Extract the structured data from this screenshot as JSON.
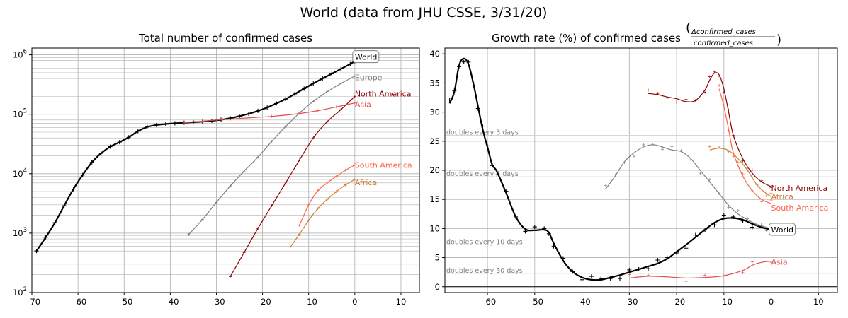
{
  "figure": {
    "title": "World (data from JHU CSSE, 3/31/20)"
  },
  "chart_data": [
    {
      "type": "line",
      "scale_y": "log",
      "title": "Total number of confirmed cases",
      "xlabel": "",
      "ylabel": "",
      "xlim": [
        -70,
        14
      ],
      "ylim": [
        100,
        1300000
      ],
      "x_ticks": [
        -70,
        -60,
        -50,
        -40,
        -30,
        -20,
        -10,
        0,
        10
      ],
      "y_ticks": [
        {
          "v": 100,
          "base": "10",
          "exp": "2"
        },
        {
          "v": 1000,
          "base": "10",
          "exp": "3"
        },
        {
          "v": 10000,
          "base": "10",
          "exp": "4"
        },
        {
          "v": 100000,
          "base": "10",
          "exp": "5"
        },
        {
          "v": 1000000,
          "base": "10",
          "exp": "6"
        }
      ],
      "grid": true,
      "series": [
        {
          "name": "World",
          "color": "#000000",
          "width": 2.2,
          "boxed": true,
          "x": [
            -69,
            -67,
            -65,
            -63,
            -61,
            -59,
            -57,
            -55,
            -53,
            -51,
            -49,
            -47,
            -45,
            -43,
            -41,
            -39,
            -37,
            -35,
            -33,
            -31,
            -29,
            -27,
            -25,
            -23,
            -21,
            -19,
            -17,
            -15,
            -13,
            -11,
            -9,
            -7,
            -5,
            -3,
            -1,
            0
          ],
          "y": [
            500,
            850,
            1500,
            2900,
            5500,
            9500,
            15500,
            22000,
            28500,
            34000,
            41000,
            52000,
            61000,
            66000,
            68500,
            70500,
            72000,
            73500,
            75000,
            77500,
            81000,
            86000,
            93000,
            102000,
            114000,
            130000,
            152000,
            180000,
            220000,
            270000,
            330000,
            400000,
            480000,
            580000,
            700000,
            780000
          ]
        },
        {
          "name": "Europe",
          "color": "#808080",
          "width": 1.2,
          "x": [
            -36,
            -33,
            -30,
            -27,
            -24,
            -21,
            -18,
            -15,
            -12,
            -9,
            -6,
            -3,
            0
          ],
          "y": [
            950,
            1700,
            3300,
            6200,
            11000,
            19000,
            35000,
            62000,
            105000,
            165000,
            240000,
            330000,
            440000
          ]
        },
        {
          "name": "North America",
          "color": "#8b0000",
          "width": 1.2,
          "x": [
            -27,
            -24,
            -21,
            -18,
            -15,
            -12,
            -9,
            -6,
            -3,
            0
          ],
          "y": [
            185,
            470,
            1200,
            2900,
            7000,
            17000,
            40000,
            75000,
            120000,
            200000
          ]
        },
        {
          "name": "Asia",
          "color": "#e05050",
          "width": 1.2,
          "x": [
            -37,
            -30,
            -24,
            -18,
            -12,
            -8,
            -4,
            0
          ],
          "y": [
            72000,
            80000,
            86000,
            92000,
            103000,
            115000,
            133000,
            155000
          ]
        },
        {
          "name": "South America",
          "color": "#ff6347",
          "width": 1.2,
          "x": [
            -12,
            -10,
            -8,
            -6,
            -4,
            -2,
            0
          ],
          "y": [
            1350,
            3000,
            5200,
            7000,
            9000,
            11500,
            14000
          ]
        },
        {
          "name": "Africa",
          "color": "#cd7f32",
          "width": 1.2,
          "x": [
            -14,
            -12,
            -10,
            -8,
            -6,
            -4,
            -2,
            0
          ],
          "y": [
            580,
            960,
            1650,
            2600,
            3700,
            5000,
            6500,
            8000
          ]
        }
      ]
    },
    {
      "type": "line",
      "scale_y": "linear",
      "title": "Growth rate (%) of confirmed cases",
      "formula": {
        "numerator": "Δconfirmed_cases",
        "denominator": "confirmed_cases"
      },
      "xlabel": "",
      "ylabel": "",
      "xlim": [
        -69,
        14
      ],
      "ylim": [
        -1,
        41
      ],
      "x_ticks": [
        -60,
        -50,
        -40,
        -30,
        -20,
        -10,
        0,
        10
      ],
      "y_ticks": [
        0,
        5,
        10,
        15,
        20,
        25,
        30,
        35,
        40
      ],
      "grid": true,
      "reference_lines": [
        {
          "y": 26.0,
          "label": "doubles every 3 days"
        },
        {
          "y": 18.9,
          "label": "doubles every 4 days"
        },
        {
          "y": 7.2,
          "label": "doubles every 10 days"
        },
        {
          "y": 2.3,
          "label": "doubles every 30 days"
        }
      ],
      "series": [
        {
          "name": "World",
          "color": "#000000",
          "width": 2.2,
          "boxed": true,
          "x": [
            -68,
            -67,
            -66,
            -65,
            -64,
            -63,
            -62,
            -61,
            -60,
            -59,
            -58,
            -56,
            -54,
            -52,
            -50,
            -48,
            -47,
            -46,
            -44,
            -42,
            -40,
            -38,
            -36,
            -34,
            -32,
            -30,
            -28,
            -26,
            -24,
            -22,
            -20,
            -18,
            -16,
            -14,
            -12,
            -10,
            -8,
            -6,
            -4,
            -2,
            0
          ],
          "y": [
            31.5,
            33.5,
            38.0,
            39.2,
            38.2,
            35.0,
            31.0,
            27.0,
            24.0,
            21.0,
            19.8,
            16.0,
            12.0,
            9.9,
            9.7,
            9.8,
            9.3,
            7.5,
            4.5,
            2.6,
            1.6,
            1.2,
            1.2,
            1.6,
            2.0,
            2.5,
            3.0,
            3.5,
            4.0,
            4.8,
            6.0,
            7.2,
            8.5,
            9.8,
            11.0,
            11.7,
            11.8,
            11.5,
            10.8,
            10.2,
            9.8
          ]
        },
        {
          "name": "Europe",
          "color": "#808080",
          "width": 1.2,
          "hidden_label": true,
          "x": [
            -35,
            -33,
            -31,
            -29,
            -27,
            -25,
            -23,
            -21,
            -19,
            -17,
            -15,
            -13,
            -11,
            -9,
            -7,
            -5,
            -3,
            -1,
            0
          ],
          "y": [
            16.8,
            19.0,
            21.5,
            23.0,
            24.0,
            24.4,
            24.0,
            23.5,
            23.2,
            22.0,
            20.0,
            18.0,
            16.0,
            14.0,
            12.5,
            11.5,
            10.7,
            10.2,
            9.9
          ]
        },
        {
          "name": "North America",
          "color": "#8b0000",
          "width": 1.2,
          "x": [
            -26,
            -24,
            -22,
            -20,
            -18,
            -16,
            -14,
            -13,
            -12,
            -11,
            -10,
            -9,
            -8,
            -6,
            -4,
            -2,
            0
          ],
          "y": [
            33.2,
            33.0,
            32.6,
            32.3,
            31.8,
            32.0,
            33.8,
            35.5,
            36.7,
            36.4,
            34.0,
            30.0,
            26.0,
            22.0,
            19.5,
            18.0,
            17.2
          ]
        },
        {
          "name": "Asia",
          "color": "#e05050",
          "width": 1.2,
          "x": [
            -30,
            -26,
            -22,
            -18,
            -14,
            -10,
            -6,
            -4,
            -2,
            0
          ],
          "y": [
            1.5,
            1.8,
            1.7,
            1.5,
            1.6,
            1.9,
            2.8,
            3.7,
            4.2,
            4.4
          ]
        },
        {
          "name": "South America",
          "color": "#ff6347",
          "width": 1.2,
          "x": [
            -11,
            -10,
            -9,
            -8,
            -6,
            -4,
            -2,
            0
          ],
          "y": [
            34.0,
            31.0,
            27.0,
            23.0,
            19.0,
            16.5,
            15.0,
            14.3
          ]
        },
        {
          "name": "Africa",
          "color": "#cd7f32",
          "width": 1.2,
          "x": [
            -13,
            -11,
            -9,
            -7,
            -5,
            -3,
            -1,
            0
          ],
          "y": [
            23.5,
            23.8,
            23.4,
            22.0,
            20.0,
            17.5,
            16.0,
            15.5
          ]
        }
      ]
    }
  ]
}
